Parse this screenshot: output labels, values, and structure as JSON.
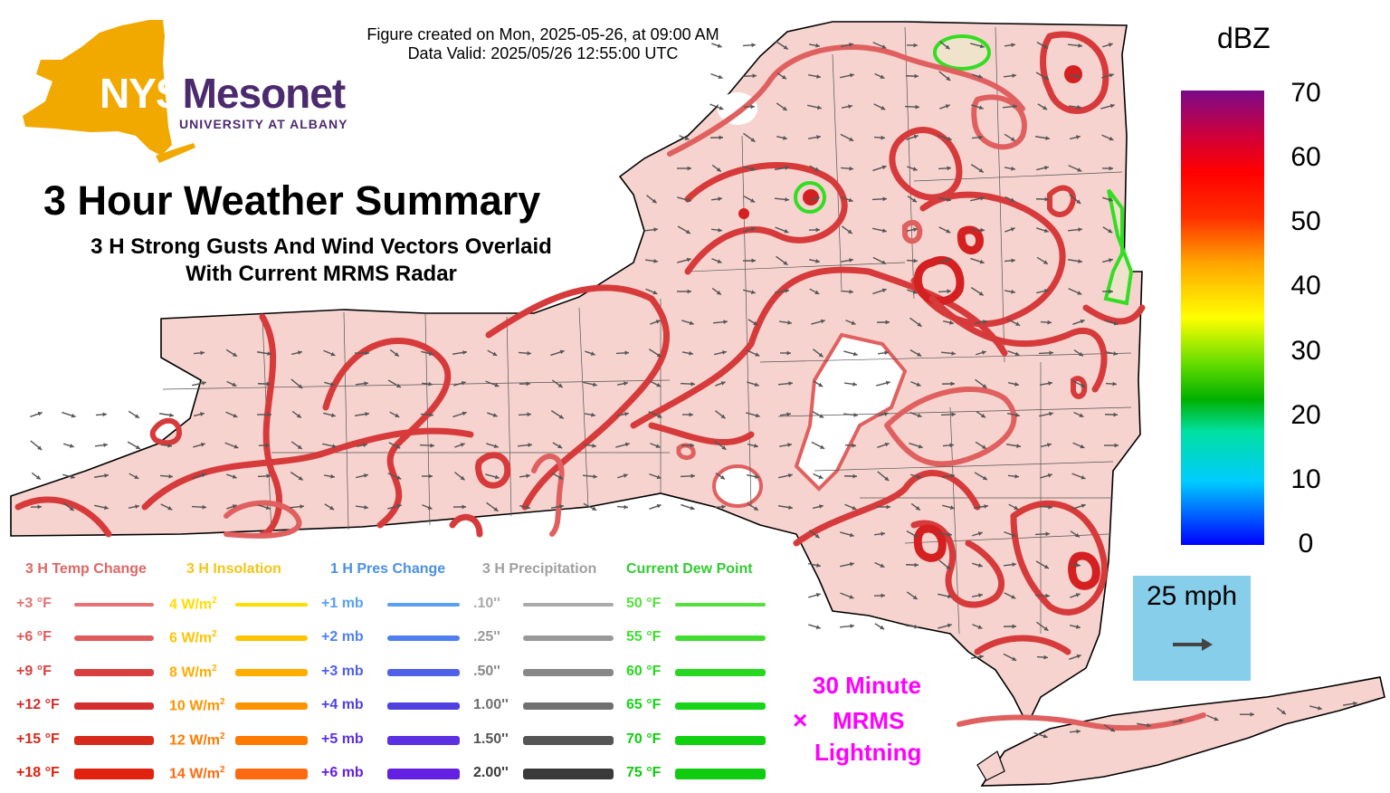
{
  "header": {
    "created": "Figure created on Mon, 2025-05-26, at 09:00 AM",
    "valid": "Data Valid: 2025/05/26 12:55:00 UTC"
  },
  "logo": {
    "nys": "NYS",
    "mesonet": "Mesonet",
    "university": "UNIVERSITY AT ALBANY",
    "colors": {
      "state": "#f1a900",
      "text": "#4b2a6e"
    }
  },
  "title": {
    "main": "3 Hour Weather Summary",
    "line1": "3 H Strong Gusts And Wind Vectors Overlaid",
    "line2": "With Current MRMS Radar"
  },
  "colorbar": {
    "title": "dBZ",
    "ticks": [
      "70",
      "60",
      "50",
      "40",
      "30",
      "20",
      "10",
      "0"
    ]
  },
  "wind_scale": {
    "label": "25 mph",
    "icon": "arrow-right-icon"
  },
  "lightning": {
    "marker": "×",
    "line1": "30 Minute",
    "line2": "MRMS",
    "line3": "Lightning",
    "color": "#ff00ff"
  },
  "legend": {
    "temp": {
      "header": "3 H Temp Change",
      "color": "#e06666",
      "items": [
        {
          "label": "+3 °F",
          "color": "#e57373"
        },
        {
          "label": "+6 °F",
          "color": "#e05a5a"
        },
        {
          "label": "+9 °F",
          "color": "#d84040"
        },
        {
          "label": "+12 °F",
          "color": "#d32f2f"
        },
        {
          "label": "+15 °F",
          "color": "#d62a1c"
        },
        {
          "label": "+18 °F",
          "color": "#e0220e"
        }
      ]
    },
    "insolation": {
      "header": "3 H Insolation",
      "color": "#f5c518",
      "items": [
        {
          "label": "4 W/m",
          "sup": "2",
          "color": "#ffdd00"
        },
        {
          "label": "6 W/m",
          "sup": "2",
          "color": "#ffc400"
        },
        {
          "label": "8 W/m",
          "sup": "2",
          "color": "#ffad00"
        },
        {
          "label": "10 W/m",
          "sup": "2",
          "color": "#ff9400"
        },
        {
          "label": "12 W/m",
          "sup": "2",
          "color": "#ff7a00"
        },
        {
          "label": "14 W/m",
          "sup": "2",
          "color": "#ff6a10"
        }
      ]
    },
    "pressure": {
      "header": "1 H Pres Change",
      "color": "#4a90e2",
      "items": [
        {
          "label": "+1 mb",
          "color": "#5aa0f0"
        },
        {
          "label": "+2 mb",
          "color": "#5080f0"
        },
        {
          "label": "+3 mb",
          "color": "#5060e8"
        },
        {
          "label": "+4 mb",
          "color": "#5040e0"
        },
        {
          "label": "+5 mb",
          "color": "#5a30e0"
        },
        {
          "label": "+6 mb",
          "color": "#6420e0"
        }
      ]
    },
    "precip": {
      "header": "3 H Precipitation",
      "color": "#a0a0a0",
      "items": [
        {
          "label": ".10''",
          "color": "#aaaaaa"
        },
        {
          "label": ".25''",
          "color": "#999999"
        },
        {
          "label": ".50''",
          "color": "#888888"
        },
        {
          "label": "1.00''",
          "color": "#707070"
        },
        {
          "label": "1.50''",
          "color": "#555555"
        },
        {
          "label": "2.00''",
          "color": "#3a3a3a"
        }
      ]
    },
    "dewpoint": {
      "header": "Current Dew Point",
      "color": "#33cc33",
      "items": [
        {
          "label": "50 °F",
          "color": "#55e040"
        },
        {
          "label": "55 °F",
          "color": "#40dd30"
        },
        {
          "label": "60 °F",
          "color": "#28d820"
        },
        {
          "label": "65 °F",
          "color": "#18d418"
        },
        {
          "label": "70 °F",
          "color": "#10d010"
        },
        {
          "label": "75 °F",
          "color": "#10cc10"
        }
      ]
    }
  },
  "map": {
    "fill": "#f6d3ce",
    "contour_colors": [
      "#e06060",
      "#d83030",
      "#d42020"
    ],
    "dewpoint_contour": "#33dd22"
  }
}
